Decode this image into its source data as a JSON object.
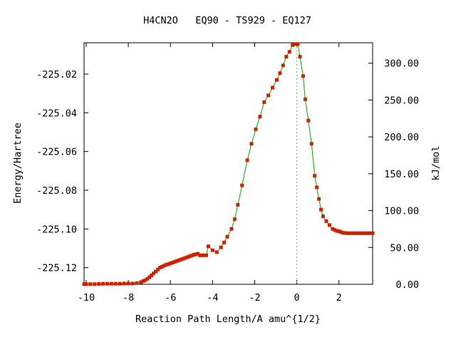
{
  "chart_data": {
    "type": "line",
    "title": "H4CN2O   EQ90 - TS929 - EQ127",
    "xlabel": "Reaction Path Length/A amu^{1/2}",
    "ylabel": "Energy/Hartree",
    "y2label": "kJ/mol",
    "xlim": [
      -10.1,
      3.6
    ],
    "ylim": [
      -225.1286,
      -225.0038
    ],
    "y2lim": [
      0,
      327.7
    ],
    "x_ticks": [
      "-10",
      "-8",
      "-6",
      "-4",
      "-2",
      "0",
      "2"
    ],
    "x_tick_values": [
      -10,
      -8,
      -6,
      -4,
      -2,
      0,
      2
    ],
    "y_ticks": [
      "-225.02",
      "-225.04",
      "-225.06",
      "-225.08",
      "-225.10",
      "-225.12"
    ],
    "y_tick_values": [
      -225.02,
      -225.04,
      -225.06,
      -225.08,
      -225.1,
      -225.12
    ],
    "y2_ticks": [
      "300.00",
      "250.00",
      "200.00",
      "150.00",
      "100.00",
      "50.00",
      "0.00"
    ],
    "y2_tick_values": [
      300,
      250,
      200,
      150,
      100,
      50,
      0
    ],
    "ts_marker_x": 0,
    "grid": false,
    "colors": {
      "line": "#00aa00",
      "points": "#cc2200",
      "marker_line": "#999999"
    },
    "series": [
      {
        "x": [
          -10.1,
          -10.0,
          -9.8,
          -9.6,
          -9.4,
          -9.2,
          -9.0,
          -8.8,
          -8.6,
          -8.4,
          -8.2,
          -8.0,
          -7.8,
          -7.6,
          -7.4,
          -7.3,
          -7.2,
          -7.1,
          -7.0,
          -6.9,
          -6.8,
          -6.7,
          -6.6,
          -6.5,
          -6.4,
          -6.3,
          -6.2,
          -6.1,
          -6.0,
          -5.9,
          -5.8,
          -5.7,
          -5.6,
          -5.5,
          -5.4,
          -5.3,
          -5.2,
          -5.1,
          -5.0,
          -4.9,
          -4.8,
          -4.7,
          -4.6,
          -4.5,
          -4.4,
          -4.3,
          -4.2,
          -4.0,
          -3.8,
          -3.6,
          -3.45,
          -3.3,
          -3.1,
          -2.95,
          -2.8,
          -2.6,
          -2.35,
          -2.15,
          -1.95,
          -1.75,
          -1.55,
          -1.35,
          -1.15,
          -0.95,
          -0.8,
          -0.65,
          -0.5,
          -0.35,
          -0.2,
          -0.05,
          0.0,
          0.05,
          0.15,
          0.3,
          0.4,
          0.55,
          0.7,
          0.85,
          0.95,
          1.05,
          1.15,
          1.25,
          1.4,
          1.55,
          1.7,
          1.8,
          1.9,
          2.0,
          2.1,
          2.2,
          2.3,
          2.4,
          2.5,
          2.6,
          2.7,
          2.8,
          2.9,
          3.0,
          3.1,
          3.2,
          3.3,
          3.4,
          3.5,
          3.6
        ],
        "y": [
          -225.1285,
          -225.1285,
          -225.1285,
          -225.1285,
          -225.1284,
          -225.1283,
          -225.1283,
          -225.1283,
          -225.1283,
          -225.1283,
          -225.1282,
          -225.1282,
          -225.1282,
          -225.128,
          -225.1275,
          -225.127,
          -225.1265,
          -225.1258,
          -225.125,
          -225.124,
          -225.123,
          -225.122,
          -225.121,
          -225.12,
          -225.1195,
          -225.119,
          -225.1185,
          -225.1182,
          -225.1178,
          -225.1174,
          -225.117,
          -225.1166,
          -225.1162,
          -225.1158,
          -225.1154,
          -225.115,
          -225.1146,
          -225.1142,
          -225.1138,
          -225.1134,
          -225.1131,
          -225.1128,
          -225.1136,
          -225.1136,
          -225.1136,
          -225.1136,
          -225.109,
          -225.111,
          -225.112,
          -225.1095,
          -225.107,
          -225.104,
          -225.1,
          -225.095,
          -225.0875,
          -225.0775,
          -225.0645,
          -225.056,
          -225.0485,
          -225.042,
          -225.0345,
          -225.031,
          -225.027,
          -225.023,
          -225.0195,
          -225.0155,
          -225.011,
          -225.0085,
          -225.005,
          -225.0045,
          -225.0045,
          -225.0045,
          -225.011,
          -225.021,
          -225.033,
          -225.044,
          -225.056,
          -225.0725,
          -225.0785,
          -225.0845,
          -225.09,
          -225.0935,
          -225.096,
          -225.098,
          -225.1,
          -225.1005,
          -225.101,
          -225.1012,
          -225.1016,
          -225.102,
          -225.1021,
          -225.1022,
          -225.1022,
          -225.1022,
          -225.1022,
          -225.1022,
          -225.1022,
          -225.1022,
          -225.1022,
          -225.1022,
          -225.1022,
          -225.1022,
          -225.1022,
          -225.1022
        ]
      }
    ]
  }
}
